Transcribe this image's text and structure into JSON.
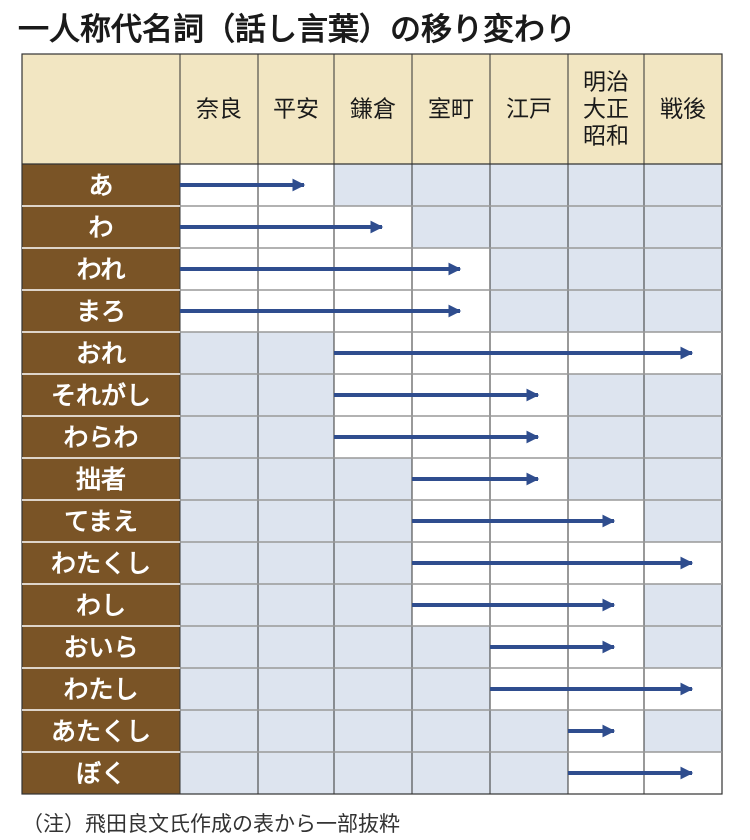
{
  "title": "一人称代名詞（話し言葉）の移り変わり",
  "note": "（注）飛田良文氏作成の表から一部抜粋",
  "colors": {
    "header_bg": "#f2e6c2",
    "label_bg": "#7a5426",
    "shade_cell": "#dde4ef",
    "white_cell": "#ffffff",
    "grid": "#333333",
    "arrow": "#2f4d8e"
  },
  "periods": [
    [
      "奈良"
    ],
    [
      "平安"
    ],
    [
      "鎌倉"
    ],
    [
      "室町"
    ],
    [
      "江戸"
    ],
    [
      "明治",
      "大正",
      "昭和"
    ],
    [
      "戦後"
    ]
  ],
  "rows": [
    {
      "label": "あ",
      "start": 0,
      "end": 1
    },
    {
      "label": "わ",
      "start": 0,
      "end": 2
    },
    {
      "label": "われ",
      "start": 0,
      "end": 3
    },
    {
      "label": "まろ",
      "start": 0,
      "end": 3
    },
    {
      "label": "おれ",
      "start": 2,
      "end": 6
    },
    {
      "label": "それがし",
      "start": 2,
      "end": 4
    },
    {
      "label": "わらわ",
      "start": 2,
      "end": 4
    },
    {
      "label": "拙者",
      "start": 3,
      "end": 4
    },
    {
      "label": "てまえ",
      "start": 3,
      "end": 5
    },
    {
      "label": "わたくし",
      "start": 3,
      "end": 6
    },
    {
      "label": "わし",
      "start": 3,
      "end": 5
    },
    {
      "label": "おいら",
      "start": 4,
      "end": 5
    },
    {
      "label": "わたし",
      "start": 4,
      "end": 6
    },
    {
      "label": "あたくし",
      "start": 5,
      "end": 5
    },
    {
      "label": "ぼく",
      "start": 5,
      "end": 6
    }
  ]
}
